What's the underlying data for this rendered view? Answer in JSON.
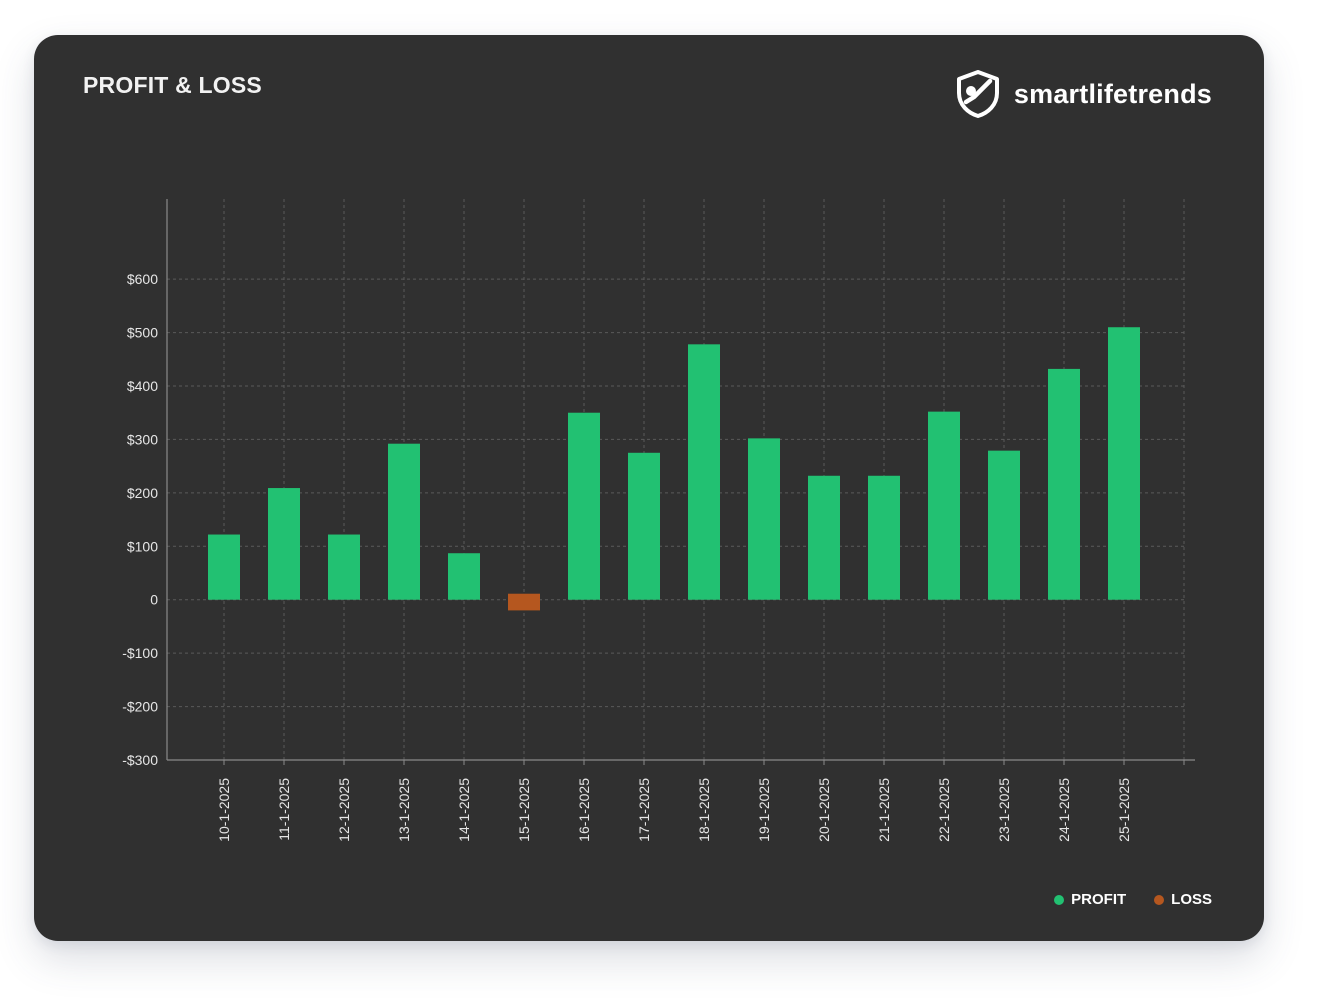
{
  "header": {
    "title": "PROFIT & LOSS",
    "brand_name": "smartlifetrends",
    "brand_icon": "shield-icon"
  },
  "colors": {
    "profit": "#22C172",
    "loss": "#B5571F",
    "background": "#303030",
    "grid": "#5a5a5a",
    "axis": "#8a8a8a",
    "text": "#e6e6e6"
  },
  "legend": [
    {
      "label": "PROFIT",
      "color": "#22C172"
    },
    {
      "label": "LOSS",
      "color": "#B5571F"
    }
  ],
  "chart_data": {
    "type": "bar",
    "categories": [
      "10-1-2025",
      "11-1-2025",
      "12-1-2025",
      "13-1-2025",
      "14-1-2025",
      "15-1-2025",
      "16-1-2025",
      "17-1-2025",
      "18-1-2025",
      "19-1-2025",
      "20-1-2025",
      "21-1-2025",
      "22-1-2025",
      "23-1-2025",
      "24-1-2025",
      "25-1-2025"
    ],
    "values": [
      122,
      209,
      122,
      292,
      87,
      -20,
      350,
      275,
      478,
      302,
      232,
      232,
      352,
      279,
      432,
      510
    ],
    "ylim": [
      -300,
      750
    ],
    "yticks": [
      -300,
      -200,
      -100,
      0,
      100,
      200,
      300,
      400,
      500,
      600
    ],
    "ytick_labels": [
      "-$300",
      "-$200",
      "-$100",
      "0",
      "$100",
      "$200",
      "$300",
      "$400",
      "$500",
      "$600"
    ],
    "grid": true,
    "legend_position": "bottom-right"
  }
}
